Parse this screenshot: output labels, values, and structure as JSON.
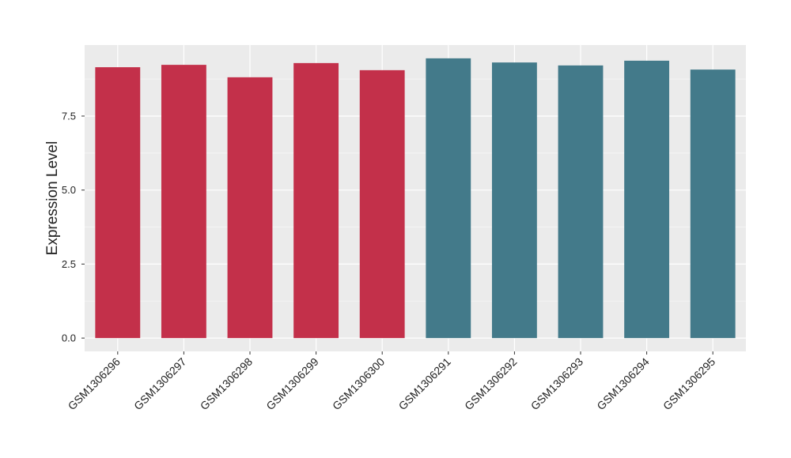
{
  "chart_data": {
    "type": "bar",
    "y_label": "Expression Level",
    "categories": [
      "GSM1306296",
      "GSM1306297",
      "GSM1306298",
      "GSM1306299",
      "GSM1306300",
      "GSM1306291",
      "GSM1306292",
      "GSM1306293",
      "GSM1306294",
      "GSM1306295"
    ],
    "values": [
      9.15,
      9.23,
      8.81,
      9.29,
      9.05,
      9.45,
      9.31,
      9.21,
      9.37,
      9.07
    ],
    "colors": [
      "#c3304a",
      "#c3304a",
      "#c3304a",
      "#c3304a",
      "#c3304a",
      "#437a8a",
      "#437a8a",
      "#437a8a",
      "#437a8a",
      "#437a8a"
    ],
    "ylim": [
      -0.45,
      9.9
    ],
    "yticks": [
      {
        "value": 0,
        "label": "0.0"
      },
      {
        "value": 2.5,
        "label": "2.5"
      },
      {
        "value": 5,
        "label": "5.0"
      },
      {
        "value": 7.5,
        "label": "7.5"
      }
    ],
    "grid": true
  }
}
